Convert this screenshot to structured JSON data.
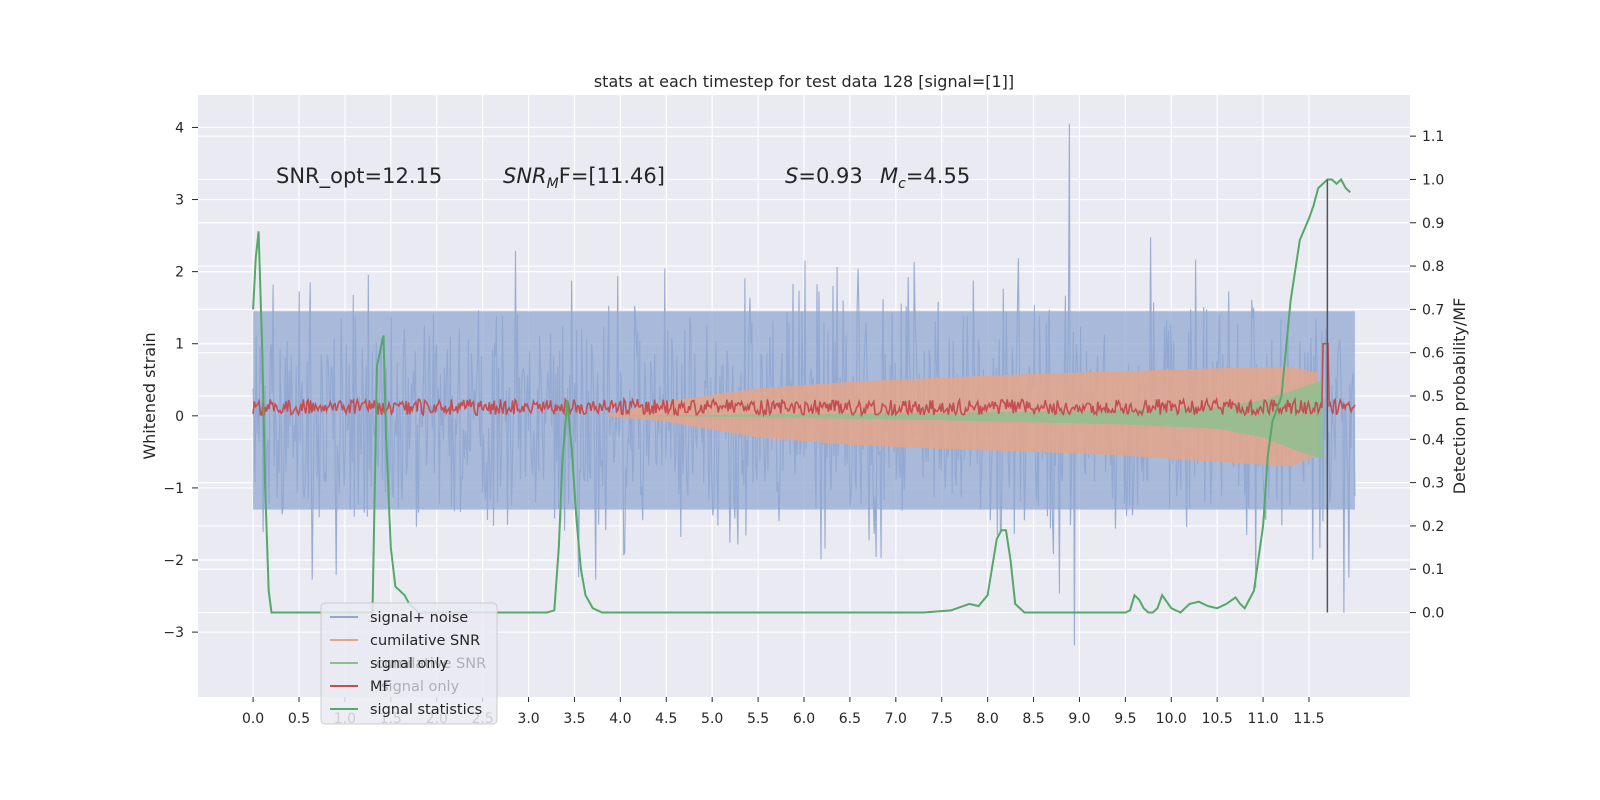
{
  "chart_data": {
    "type": "line",
    "title": "stats at each timestep for test data 128 [signal=[1]]",
    "ylabel_left": "Whitened strain",
    "ylabel_right": "Detection probability/MF",
    "xlim": [
      -0.6,
      12.6
    ],
    "ylim_left": [
      -3.9,
      4.45
    ],
    "ylim_right": [
      -0.195,
      1.195
    ],
    "x_ticks": [
      0.0,
      0.5,
      1.0,
      1.5,
      2.0,
      2.5,
      3.0,
      3.5,
      4.0,
      4.5,
      5.0,
      5.5,
      6.0,
      6.5,
      7.0,
      7.5,
      8.0,
      8.5,
      9.0,
      9.5,
      10.0,
      10.5,
      11.0,
      11.5
    ],
    "x_tick_labels": [
      "0.0",
      "0.5",
      "1.0",
      "1.5",
      "2.0",
      "2.5",
      "3.0",
      "3.5",
      "4.0",
      "4.5",
      "5.0",
      "5.5",
      "6.0",
      "6.5",
      "7.0",
      "7.5",
      "8.0",
      "8.5",
      "9.0",
      "9.5",
      "10.0",
      "10.5",
      "11.0",
      "11.5"
    ],
    "y_left_ticks": [
      -3,
      -2,
      -1,
      0,
      1,
      2,
      3,
      4
    ],
    "y_left_tick_labels": [
      "−3",
      "−2",
      "−1",
      "0",
      "1",
      "2",
      "3",
      "4"
    ],
    "y_right_ticks": [
      0.0,
      0.1,
      0.2,
      0.3,
      0.4,
      0.5,
      0.6,
      0.7,
      0.8,
      0.9,
      1.0,
      1.1
    ],
    "y_right_tick_labels": [
      "0.0",
      "0.1",
      "0.2",
      "0.3",
      "0.4",
      "0.5",
      "0.6",
      "0.7",
      "0.8",
      "0.9",
      "1.0",
      "1.1"
    ],
    "grid": true,
    "annotations": {
      "snr_opt": "SNR_opt=12.15",
      "snr_mf_main": "SNR",
      "snr_mf_sub": "M",
      "snr_mf_rest": "F=[11.46]",
      "s_main": "S",
      "s_rest": "=0.93",
      "mc_main": "M",
      "mc_sub": "c",
      "mc_rest": "=4.55"
    },
    "vertical_line_x": 11.7,
    "series": [
      {
        "name": "signal+ noise",
        "color": "#92a8d1",
        "kind": "noise-band",
        "x_range": [
          0.0,
          12.0
        ],
        "approx_range": [
          -1.7,
          1.7
        ]
      },
      {
        "name": "cumilative SNR",
        "color": "#e5a48a",
        "kind": "envelope",
        "x": [
          3.8,
          4.5,
          5.5,
          6.5,
          7.5,
          8.5,
          9.5,
          10.5,
          11.3,
          11.6
        ],
        "upper": [
          0.0,
          0.2,
          0.38,
          0.47,
          0.53,
          0.58,
          0.62,
          0.66,
          0.68,
          0.6
        ],
        "lower": [
          0.0,
          -0.08,
          -0.3,
          -0.4,
          -0.46,
          -0.5,
          -0.55,
          -0.64,
          -0.7,
          -0.55
        ]
      },
      {
        "name": "signal only",
        "color": "#8fbf8f",
        "kind": "envelope",
        "x": [
          3.8,
          5.5,
          7.5,
          9.5,
          10.5,
          11.0,
          11.4,
          11.65
        ],
        "upper": [
          0.0,
          0.02,
          0.04,
          0.08,
          0.12,
          0.22,
          0.38,
          0.5
        ],
        "lower": [
          0.0,
          -0.02,
          -0.06,
          -0.12,
          -0.18,
          -0.3,
          -0.5,
          -0.6
        ]
      },
      {
        "name": "MF",
        "color": "#c44e52",
        "kind": "noise-band",
        "x_range": [
          0.0,
          12.0
        ],
        "approx_range": [
          0.0,
          0.3
        ],
        "spike": {
          "x": 11.68,
          "y": 1.0
        }
      },
      {
        "name": "signal statistics",
        "color": "#55a868",
        "axis": "right",
        "x": [
          0.0,
          0.03,
          0.06,
          0.1,
          0.13,
          0.17,
          0.2,
          0.23,
          0.3,
          0.4,
          0.5,
          0.6,
          0.7,
          0.8,
          0.9,
          1.0,
          1.1,
          1.2,
          1.3,
          1.35,
          1.38,
          1.42,
          1.45,
          1.5,
          1.55,
          1.6,
          1.65,
          1.7,
          1.8,
          1.9,
          2.0,
          2.2,
          2.4,
          2.6,
          2.8,
          3.0,
          3.1,
          3.2,
          3.28,
          3.33,
          3.37,
          3.42,
          3.47,
          3.52,
          3.57,
          3.62,
          3.7,
          3.8,
          3.9,
          4.0,
          4.2,
          4.5,
          5.0,
          5.5,
          6.0,
          6.5,
          7.0,
          7.3,
          7.6,
          7.8,
          7.9,
          8.0,
          8.1,
          8.15,
          8.2,
          8.25,
          8.3,
          8.4,
          8.5,
          9.0,
          9.3,
          9.5,
          9.55,
          9.6,
          9.65,
          9.7,
          9.75,
          9.8,
          9.85,
          9.9,
          10.0,
          10.05,
          10.1,
          10.15,
          10.2,
          10.3,
          10.4,
          10.5,
          10.6,
          10.7,
          10.75,
          10.8,
          10.9,
          11.0,
          11.05,
          11.1,
          11.2,
          11.3,
          11.4,
          11.5,
          11.55,
          11.6,
          11.7,
          11.75,
          11.8,
          11.85,
          11.9,
          11.95
        ],
        "y": [
          0.7,
          0.82,
          0.88,
          0.6,
          0.3,
          0.05,
          0.0,
          0.0,
          0.0,
          0.0,
          0.0,
          0.0,
          0.0,
          0.0,
          0.0,
          0.0,
          0.0,
          0.0,
          0.0,
          0.57,
          0.6,
          0.64,
          0.4,
          0.15,
          0.06,
          0.05,
          0.04,
          0.02,
          0.0,
          0.0,
          0.0,
          0.0,
          0.0,
          0.0,
          0.0,
          0.0,
          0.0,
          0.0,
          0.005,
          0.15,
          0.35,
          0.49,
          0.38,
          0.22,
          0.1,
          0.04,
          0.01,
          0.0,
          0.0,
          0.0,
          0.0,
          0.0,
          0.0,
          0.0,
          0.0,
          0.0,
          0.0,
          0.0,
          0.005,
          0.02,
          0.015,
          0.04,
          0.17,
          0.19,
          0.19,
          0.12,
          0.02,
          0.0,
          0.0,
          0.0,
          0.0,
          0.0,
          0.005,
          0.04,
          0.03,
          0.01,
          0.0,
          0.0,
          0.01,
          0.04,
          0.01,
          0.005,
          0.0,
          0.01,
          0.02,
          0.025,
          0.015,
          0.01,
          0.02,
          0.035,
          0.02,
          0.01,
          0.05,
          0.2,
          0.36,
          0.44,
          0.5,
          0.72,
          0.86,
          0.91,
          0.94,
          0.98,
          1.0,
          1.0,
          0.99,
          1.0,
          0.98,
          0.97
        ]
      }
    ],
    "legend": {
      "placement": "lower-left",
      "entries": [
        {
          "label": "signal+ noise",
          "color": "#92a8d1"
        },
        {
          "label": "cumilative SNR",
          "color": "#e5a48a"
        },
        {
          "label": "signal only",
          "color": "#8fbf8f"
        },
        {
          "label": "MF",
          "color": "#c44e52"
        },
        {
          "label": "signal statistics",
          "color": "#55a868"
        }
      ],
      "overlapped_text": [
        "cumilative SNR",
        "signal only"
      ]
    },
    "colors": {
      "plot_background": "#eaeaf2",
      "grid": "#ffffff",
      "vline": "#555555"
    }
  }
}
